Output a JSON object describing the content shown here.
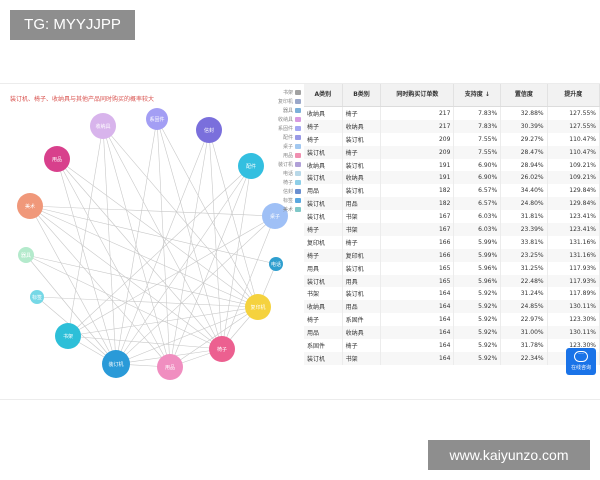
{
  "watermarks": {
    "top": "TG: MYYJJPP",
    "bottom": "www.kaiyunzo.com"
  },
  "graph": {
    "title": "装订机、椅子、收纳具与其他产品同时购买的概率较大",
    "legend": [
      {
        "label": "书架",
        "color": "#a1a1a1"
      },
      {
        "label": "复印机",
        "color": "#9aa7c9"
      },
      {
        "label": "器具",
        "color": "#7cb0d9"
      },
      {
        "label": "收纳具",
        "color": "#d79ae0"
      },
      {
        "label": "系固件",
        "color": "#a3a7f2"
      },
      {
        "label": "配件",
        "color": "#9999e6"
      },
      {
        "label": "桌子",
        "color": "#a2c8f0"
      },
      {
        "label": "用品",
        "color": "#f08fb0"
      },
      {
        "label": "装订机",
        "color": "#b0a0d8"
      },
      {
        "label": "电话",
        "color": "#b8d8e8"
      },
      {
        "label": "椅子",
        "color": "#8ecfe8"
      },
      {
        "label": "信封",
        "color": "#6a8fd0"
      },
      {
        "label": "标签",
        "color": "#5aa8e0"
      },
      {
        "label": "美术",
        "color": "#7fc8c8"
      }
    ],
    "nodes": [
      {
        "id": "n1",
        "label": "收纳具",
        "color": "#d8b4ec"
      },
      {
        "id": "n2",
        "label": "系固件",
        "color": "#a39ef4"
      },
      {
        "id": "n3",
        "label": "信封",
        "color": "#7a6fdc"
      },
      {
        "id": "n4",
        "label": "用品",
        "color": "#d8408c"
      },
      {
        "id": "n5",
        "label": "配件",
        "color": "#33bfe0"
      },
      {
        "id": "n6",
        "label": "美术",
        "color": "#f0987a"
      },
      {
        "id": "n7",
        "label": "桌子",
        "color": "#9fc0f6"
      },
      {
        "id": "n8",
        "label": "器具",
        "color": "#b4eacc"
      },
      {
        "id": "n9",
        "label": "电话",
        "color": "#2f9fcf"
      },
      {
        "id": "n10",
        "label": "标签",
        "color": "#76d8e6"
      },
      {
        "id": "n11",
        "label": "复印机",
        "color": "#f5d23e"
      },
      {
        "id": "n12",
        "label": "书架",
        "color": "#2dbfd8"
      },
      {
        "id": "n13",
        "label": "椅子",
        "color": "#ec6090"
      },
      {
        "id": "n14",
        "label": "装订机",
        "color": "#2a9ad8"
      },
      {
        "id": "n15",
        "label": "用品",
        "color": "#f08ec0"
      }
    ],
    "edges": [
      [
        "n1",
        "n14"
      ],
      [
        "n1",
        "n15"
      ],
      [
        "n1",
        "n13"
      ],
      [
        "n1",
        "n11"
      ],
      [
        "n1",
        "n12"
      ],
      [
        "n2",
        "n14"
      ],
      [
        "n2",
        "n11"
      ],
      [
        "n2",
        "n13"
      ],
      [
        "n2",
        "n15"
      ],
      [
        "n3",
        "n14"
      ],
      [
        "n3",
        "n13"
      ],
      [
        "n3",
        "n11"
      ],
      [
        "n3",
        "n15"
      ],
      [
        "n4",
        "n14"
      ],
      [
        "n4",
        "n11"
      ],
      [
        "n4",
        "n13"
      ],
      [
        "n4",
        "n15"
      ],
      [
        "n5",
        "n14"
      ],
      [
        "n5",
        "n13"
      ],
      [
        "n5",
        "n12"
      ],
      [
        "n5",
        "n15"
      ],
      [
        "n6",
        "n14"
      ],
      [
        "n6",
        "n11"
      ],
      [
        "n6",
        "n13"
      ],
      [
        "n6",
        "n15"
      ],
      [
        "n7",
        "n14"
      ],
      [
        "n7",
        "n13"
      ],
      [
        "n7",
        "n12"
      ],
      [
        "n7",
        "n6"
      ],
      [
        "n8",
        "n11"
      ],
      [
        "n8",
        "n13"
      ],
      [
        "n8",
        "n14"
      ],
      [
        "n9",
        "n11"
      ],
      [
        "n9",
        "n6"
      ],
      [
        "n10",
        "n14"
      ],
      [
        "n10",
        "n11"
      ],
      [
        "n11",
        "n14"
      ],
      [
        "n11",
        "n13"
      ],
      [
        "n11",
        "n12"
      ],
      [
        "n11",
        "n15"
      ],
      [
        "n12",
        "n14"
      ],
      [
        "n12",
        "n13"
      ],
      [
        "n13",
        "n14"
      ],
      [
        "n14",
        "n15"
      ],
      [
        "n13",
        "n15"
      ]
    ]
  },
  "table": {
    "headers": [
      "A类别",
      "B类别",
      "同时购买订单数",
      "支持度 ↓",
      "置信度",
      "提升度"
    ],
    "rows": [
      [
        "收纳具",
        "椅子",
        "217",
        "7.83%",
        "32.88%",
        "127.55%"
      ],
      [
        "椅子",
        "收纳具",
        "217",
        "7.83%",
        "30.39%",
        "127.55%"
      ],
      [
        "椅子",
        "装订机",
        "209",
        "7.55%",
        "29.27%",
        "110.47%"
      ],
      [
        "装订机",
        "椅子",
        "209",
        "7.55%",
        "28.47%",
        "110.47%"
      ],
      [
        "收纳具",
        "装订机",
        "191",
        "6.90%",
        "28.94%",
        "109.21%"
      ],
      [
        "装订机",
        "收纳具",
        "191",
        "6.90%",
        "26.02%",
        "109.21%"
      ],
      [
        "用品",
        "装订机",
        "182",
        "6.57%",
        "34.40%",
        "129.84%"
      ],
      [
        "装订机",
        "用品",
        "182",
        "6.57%",
        "24.80%",
        "129.84%"
      ],
      [
        "装订机",
        "书架",
        "167",
        "6.03%",
        "31.81%",
        "123.41%"
      ],
      [
        "椅子",
        "书架",
        "167",
        "6.03%",
        "23.39%",
        "123.41%"
      ],
      [
        "复印机",
        "椅子",
        "166",
        "5.99%",
        "33.81%",
        "131.16%"
      ],
      [
        "椅子",
        "复印机",
        "166",
        "5.99%",
        "23.25%",
        "131.16%"
      ],
      [
        "用具",
        "装订机",
        "165",
        "5.96%",
        "31.25%",
        "117.93%"
      ],
      [
        "装订机",
        "用具",
        "165",
        "5.96%",
        "22.48%",
        "117.93%"
      ],
      [
        "书架",
        "装订机",
        "164",
        "5.92%",
        "31.24%",
        "117.89%"
      ],
      [
        "收纳具",
        "用品",
        "164",
        "5.92%",
        "24.85%",
        "130.11%"
      ],
      [
        "椅子",
        "系固件",
        "164",
        "5.92%",
        "22.97%",
        "123.30%"
      ],
      [
        "用品",
        "收纳具",
        "164",
        "5.92%",
        "31.00%",
        "130.11%"
      ],
      [
        "系固件",
        "椅子",
        "164",
        "5.92%",
        "31.78%",
        "123.30%"
      ],
      [
        "装订机",
        "书架",
        "164",
        "5.92%",
        "22.34%",
        "117.89%"
      ]
    ]
  },
  "chat": {
    "label": "在线咨询",
    "icon": "chat-bubble-icon"
  }
}
